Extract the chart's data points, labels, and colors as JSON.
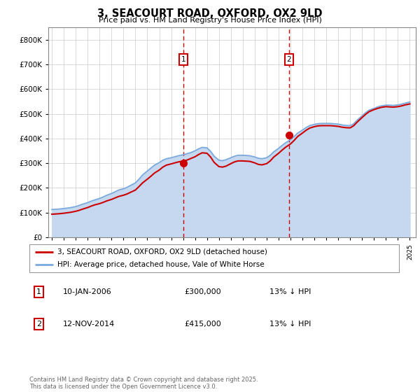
{
  "title": "3, SEACOURT ROAD, OXFORD, OX2 9LD",
  "subtitle": "Price paid vs. HM Land Registry's House Price Index (HPI)",
  "legend_line1": "3, SEACOURT ROAD, OXFORD, OX2 9LD (detached house)",
  "legend_line2": "HPI: Average price, detached house, Vale of White Horse",
  "sale1_date": "10-JAN-2006",
  "sale1_price": "£300,000",
  "sale1_hpi": "13% ↓ HPI",
  "sale2_date": "12-NOV-2014",
  "sale2_price": "£415,000",
  "sale2_hpi": "13% ↓ HPI",
  "footnote": "Contains HM Land Registry data © Crown copyright and database right 2025.\nThis data is licensed under the Open Government Licence v3.0.",
  "sale1_year": 2006.03,
  "sale2_year": 2014.87,
  "sale1_price_val": 300000,
  "sale2_price_val": 415000,
  "red_color": "#cc0000",
  "blue_color": "#7aaadd",
  "blue_fill_color": "#c5d8f0",
  "vline_color": "#cc0000",
  "grid_color": "#cccccc",
  "ylim": [
    0,
    850000
  ],
  "xlim_start": 1994.7,
  "xlim_end": 2025.5,
  "hpi_data": {
    "years": [
      1995.0,
      1995.3,
      1995.6,
      1996.0,
      1996.3,
      1996.6,
      1997.0,
      1997.3,
      1997.6,
      1998.0,
      1998.3,
      1998.6,
      1999.0,
      1999.3,
      1999.6,
      2000.0,
      2000.3,
      2000.6,
      2001.0,
      2001.3,
      2001.6,
      2002.0,
      2002.3,
      2002.6,
      2003.0,
      2003.3,
      2003.6,
      2004.0,
      2004.3,
      2004.6,
      2005.0,
      2005.3,
      2005.6,
      2006.0,
      2006.3,
      2006.6,
      2007.0,
      2007.3,
      2007.6,
      2008.0,
      2008.3,
      2008.6,
      2009.0,
      2009.3,
      2009.6,
      2010.0,
      2010.3,
      2010.6,
      2011.0,
      2011.3,
      2011.6,
      2012.0,
      2012.3,
      2012.6,
      2013.0,
      2013.3,
      2013.6,
      2014.0,
      2014.3,
      2014.6,
      2015.0,
      2015.3,
      2015.6,
      2016.0,
      2016.3,
      2016.6,
      2017.0,
      2017.3,
      2017.6,
      2018.0,
      2018.3,
      2018.6,
      2019.0,
      2019.3,
      2019.6,
      2020.0,
      2020.3,
      2020.6,
      2021.0,
      2021.3,
      2021.6,
      2022.0,
      2022.3,
      2022.6,
      2023.0,
      2023.3,
      2023.6,
      2024.0,
      2024.3,
      2024.6,
      2025.0
    ],
    "values": [
      112000,
      113000,
      114000,
      116000,
      118000,
      120000,
      124000,
      129000,
      134000,
      140000,
      146000,
      151000,
      157000,
      163000,
      170000,
      177000,
      184000,
      191000,
      196000,
      202000,
      210000,
      220000,
      235000,
      252000,
      268000,
      280000,
      292000,
      302000,
      312000,
      318000,
      322000,
      326000,
      330000,
      334000,
      338000,
      342000,
      350000,
      358000,
      364000,
      362000,
      348000,
      328000,
      312000,
      310000,
      314000,
      322000,
      328000,
      332000,
      332000,
      331000,
      330000,
      325000,
      320000,
      318000,
      322000,
      332000,
      346000,
      360000,
      372000,
      383000,
      395000,
      408000,
      422000,
      434000,
      444000,
      452000,
      457000,
      460000,
      461000,
      461000,
      461000,
      460000,
      458000,
      455000,
      453000,
      452000,
      460000,
      475000,
      492000,
      505000,
      515000,
      522000,
      528000,
      532000,
      535000,
      535000,
      534000,
      536000,
      539000,
      543000,
      548000
    ]
  },
  "price_data": {
    "years": [
      1995.0,
      1995.3,
      1995.6,
      1996.0,
      1996.3,
      1996.6,
      1997.0,
      1997.3,
      1997.6,
      1998.0,
      1998.3,
      1998.6,
      1999.0,
      1999.3,
      1999.6,
      2000.0,
      2000.3,
      2000.6,
      2001.0,
      2001.3,
      2001.6,
      2002.0,
      2002.3,
      2002.6,
      2003.0,
      2003.3,
      2003.6,
      2004.0,
      2004.3,
      2004.6,
      2005.0,
      2005.3,
      2005.6,
      2006.0,
      2006.3,
      2006.6,
      2007.0,
      2007.3,
      2007.6,
      2008.0,
      2008.3,
      2008.6,
      2009.0,
      2009.3,
      2009.6,
      2010.0,
      2010.3,
      2010.6,
      2011.0,
      2011.3,
      2011.6,
      2012.0,
      2012.3,
      2012.6,
      2013.0,
      2013.3,
      2013.6,
      2014.0,
      2014.3,
      2014.6,
      2015.0,
      2015.3,
      2015.6,
      2016.0,
      2016.3,
      2016.6,
      2017.0,
      2017.3,
      2017.6,
      2018.0,
      2018.3,
      2018.6,
      2019.0,
      2019.3,
      2019.6,
      2020.0,
      2020.3,
      2020.6,
      2021.0,
      2021.3,
      2021.6,
      2022.0,
      2022.3,
      2022.6,
      2023.0,
      2023.3,
      2023.6,
      2024.0,
      2024.3,
      2024.6,
      2025.0
    ],
    "values": [
      93000,
      94000,
      95000,
      97000,
      99000,
      101000,
      105000,
      109000,
      114000,
      120000,
      126000,
      131000,
      136000,
      141000,
      147000,
      153000,
      159000,
      165000,
      170000,
      175000,
      182000,
      191000,
      205000,
      220000,
      235000,
      247000,
      260000,
      272000,
      284000,
      292000,
      297000,
      301000,
      305000,
      308000,
      312000,
      318000,
      326000,
      335000,
      342000,
      340000,
      325000,
      303000,
      286000,
      284000,
      288000,
      298000,
      305000,
      309000,
      309000,
      308000,
      307000,
      301000,
      295000,
      293000,
      298000,
      309000,
      325000,
      340000,
      353000,
      365000,
      378000,
      392000,
      408000,
      422000,
      433000,
      442000,
      448000,
      451000,
      452000,
      452000,
      452000,
      451000,
      449000,
      446000,
      444000,
      443000,
      452000,
      467000,
      485000,
      498000,
      509000,
      517000,
      522000,
      526000,
      529000,
      528000,
      527000,
      529000,
      532000,
      536000,
      540000
    ]
  }
}
